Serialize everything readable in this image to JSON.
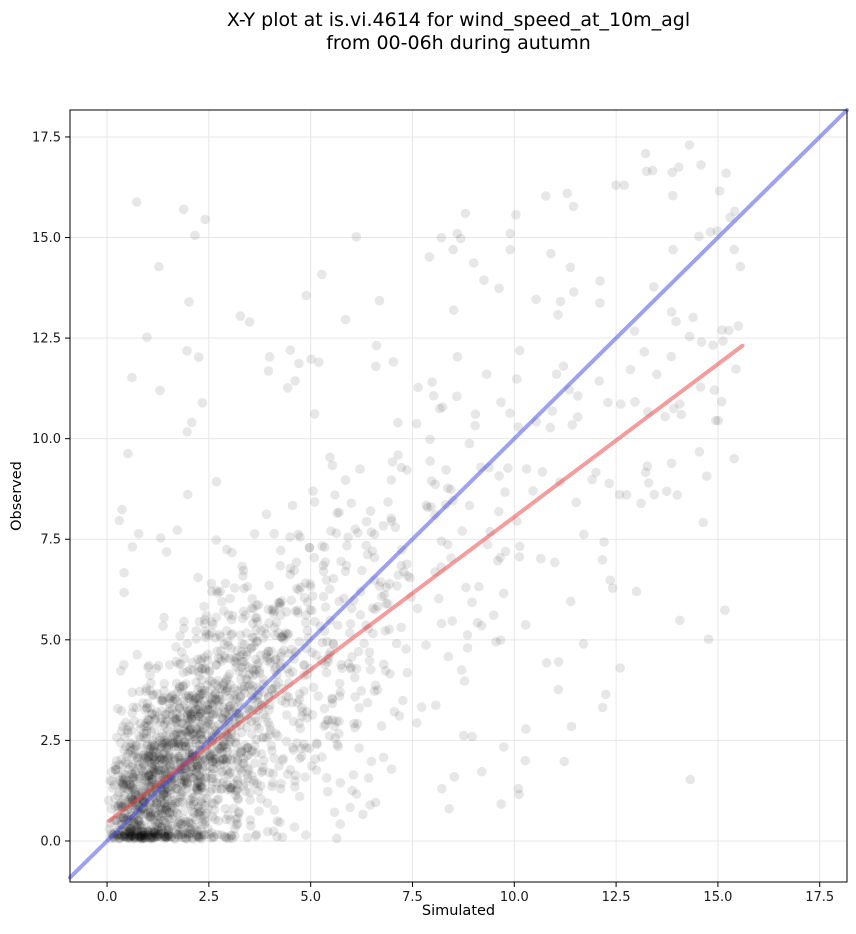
{
  "figure": {
    "title_line1": "X-Y plot at is.vi.4614 for wind_speed_at_10m_agl",
    "title_line2": "from 00-06h during autumn",
    "background_color": "#ffffff"
  },
  "chart_data": {
    "type": "scatter",
    "title": "X-Y plot at is.vi.4614 for wind_speed_at_10m_agl from 00-06h during autumn",
    "xlabel": "Simulated",
    "ylabel": "Observed",
    "xlim": [
      -0.91,
      18.17
    ],
    "ylim": [
      -1.02,
      18.17
    ],
    "xticks": [
      0,
      2.5,
      5,
      7.5,
      10,
      12.5,
      15,
      17.5
    ],
    "xtick_labels": [
      "0.0",
      "2.5",
      "5.0",
      "7.5",
      "10.0",
      "12.5",
      "15.0",
      "17.5"
    ],
    "yticks": [
      0,
      2.5,
      5,
      7.5,
      10,
      12.5,
      15,
      17.5
    ],
    "ytick_labels": [
      "0.0",
      "2.5",
      "5.0",
      "7.5",
      "10.0",
      "12.5",
      "15.0",
      "17.5"
    ],
    "grid": true,
    "grid_color": "#e7e7e7",
    "spine_color": "#000000",
    "tick_label_color": "#1a1a1a",
    "legend": false,
    "identity_line": {
      "x": [
        -0.91,
        18.17
      ],
      "y": [
        -0.91,
        18.17
      ],
      "color": "#3c46e1",
      "opacity": 0.5,
      "width": 4
    },
    "fit_line": {
      "x": [
        0.05,
        15.6
      ],
      "y": [
        0.5,
        12.31
      ],
      "slope": 0.76,
      "intercept": 0.46,
      "color": "#eb3c3c",
      "opacity": 0.5,
      "width": 4
    },
    "marker": {
      "radius": 4.8,
      "color": "#000000",
      "opacity": 0.095
    },
    "n_points_approx": 2100,
    "point_cloud": {
      "seed": 20251114,
      "n_core": 1980,
      "exp1": 1.45,
      "exp2": 1.05,
      "spread_frac": 0.13,
      "spread_min": 2.0,
      "spread_span": 13.6,
      "spread_pow": 1.35,
      "intercept": 0.5,
      "slope": 0.78,
      "noise_base": 1.0,
      "noise_per_x": 0.2,
      "x_clip": [
        0.03,
        15.65
      ],
      "y_floor": 0.05,
      "y_ceil": 17.3,
      "n_band": 110,
      "band_x": [
        0.3,
        11.6
      ],
      "band_x_pow": 1.4,
      "band_y": [
        0.4,
        16.2
      ],
      "band_y_pow": 1.2
    },
    "notable_points": [
      [
        14.3,
        17.3
      ],
      [
        15.2,
        16.6
      ],
      [
        12.7,
        16.3
      ],
      [
        12.5,
        16.3
      ],
      [
        11.3,
        16.1
      ],
      [
        8.8,
        15.6
      ],
      [
        9.9,
        15.1
      ],
      [
        8.6,
        15.1
      ],
      [
        8.5,
        14.7
      ],
      [
        9.9,
        14.7
      ],
      [
        10.9,
        14.6
      ],
      [
        13.9,
        14.7
      ],
      [
        15.4,
        14.7
      ],
      [
        15.1,
        12.7
      ],
      [
        15.5,
        12.8
      ],
      [
        14.6,
        12.4
      ],
      [
        3.5,
        12.9
      ],
      [
        4.5,
        12.2
      ],
      [
        1.3,
        11.2
      ],
      [
        6.6,
        11.8
      ],
      [
        5.2,
        11.9
      ],
      [
        13.5,
        11.6
      ],
      [
        12.3,
        10.9
      ],
      [
        14.1,
        10.6
      ],
      [
        8.4,
        0.8
      ],
      [
        10.1,
        1.3
      ],
      [
        12.6,
        4.3
      ],
      [
        11.7,
        4.9
      ],
      [
        13.0,
        6.2
      ],
      [
        14.0,
        8.6
      ],
      [
        13.3,
        8.9
      ]
    ]
  }
}
